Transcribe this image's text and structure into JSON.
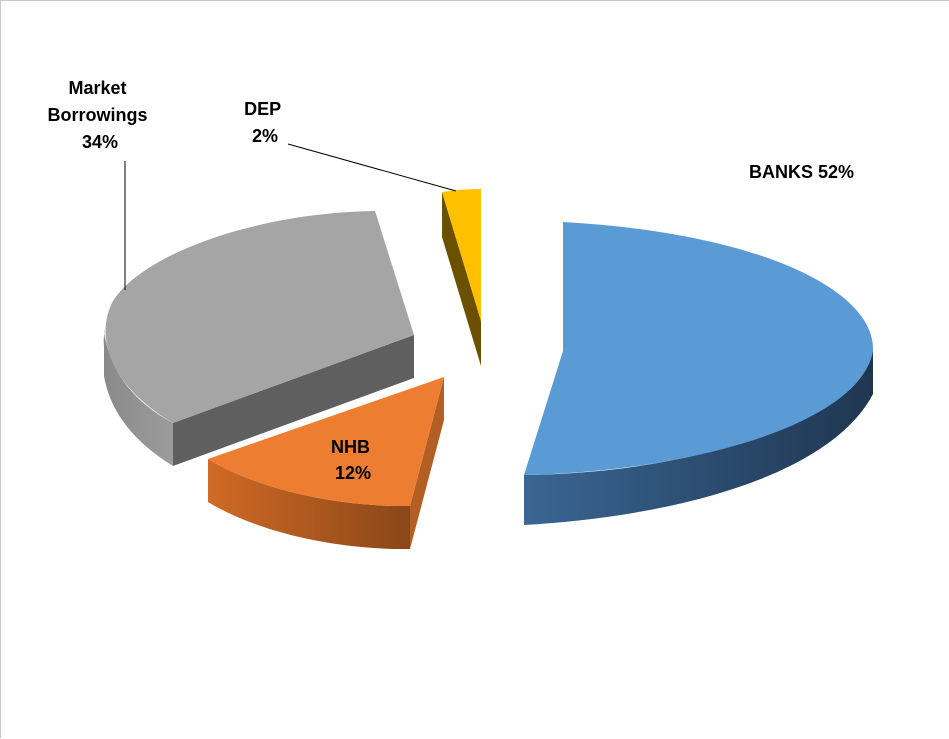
{
  "chart_data": {
    "type": "pie",
    "style": "3d-exploded",
    "categories": [
      "BANKS",
      "NHB",
      "Market Borrowings",
      "DEP"
    ],
    "values": [
      52,
      12,
      34,
      2
    ],
    "labels": [
      {
        "lines": [
          "BANKS 52%"
        ]
      },
      {
        "lines": [
          "NHB",
          "12%"
        ]
      },
      {
        "lines": [
          "Market",
          "Borrowings",
          "34%"
        ]
      },
      {
        "lines": [
          "DEP",
          "2%"
        ]
      }
    ],
    "colors": [
      "#5B9BD5",
      "#ED7D31",
      "#A5A5A5",
      "#FFC000"
    ],
    "side_colors": [
      "#2E4E6E",
      "#A8561E",
      "#6E6E6E",
      "#7A5A00"
    ],
    "legend": "none"
  }
}
